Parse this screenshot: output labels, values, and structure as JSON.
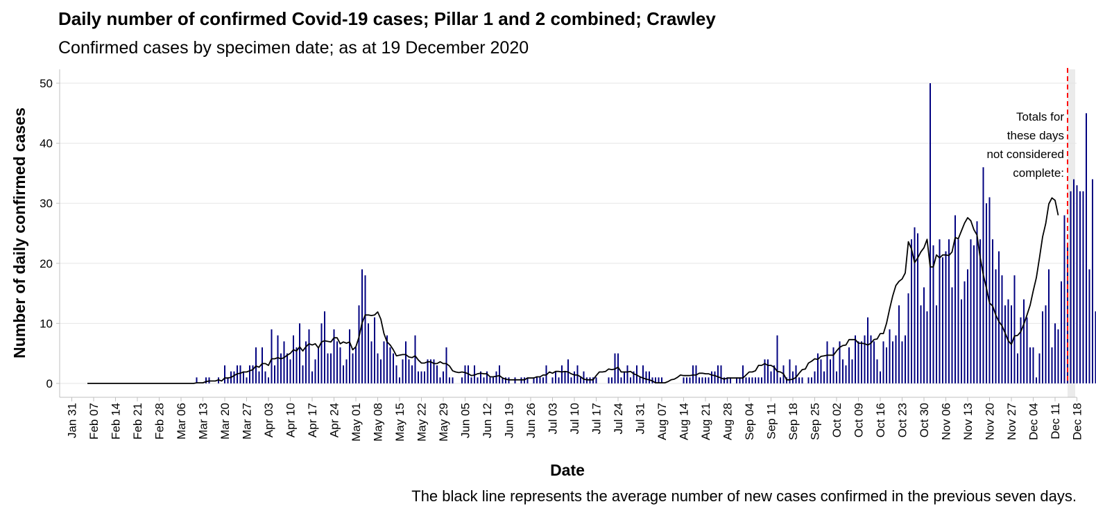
{
  "chart_data": {
    "type": "bar",
    "title": "Daily number of confirmed Covid-19 cases; Pillar 1 and 2 combined; Crawley",
    "subtitle": "Confirmed cases by specimen date; as at 19 December 2020",
    "xlabel": "Date",
    "ylabel": "Number of daily confirmed cases",
    "caption": "The black line represents the average number of new cases confirmed in the previous seven days.",
    "annotation": [
      "Totals for",
      "these days",
      "not considered",
      "complete:"
    ],
    "ylim": [
      0,
      52
    ],
    "yticks": [
      0,
      10,
      20,
      30,
      40,
      50
    ],
    "grid": true,
    "x_start_date": "2020-01-31",
    "incomplete_from_date": "2020-12-15",
    "xtick_labels": [
      "Jan 31",
      "Feb 07",
      "Feb 14",
      "Feb 21",
      "Feb 28",
      "Mar 06",
      "Mar 13",
      "Mar 20",
      "Mar 27",
      "Apr 03",
      "Apr 10",
      "Apr 17",
      "Apr 24",
      "May 01",
      "May 08",
      "May 15",
      "May 22",
      "May 29",
      "Jun 05",
      "Jun 12",
      "Jun 19",
      "Jun 26",
      "Jul 03",
      "Jul 10",
      "Jul 17",
      "Jul 24",
      "Jul 31",
      "Aug 07",
      "Aug 14",
      "Aug 21",
      "Aug 28",
      "Sep 04",
      "Sep 11",
      "Sep 18",
      "Sep 25",
      "Oct 02",
      "Oct 09",
      "Oct 16",
      "Oct 23",
      "Oct 30",
      "Nov 06",
      "Nov 13",
      "Nov 20",
      "Nov 27",
      "Dec 04",
      "Dec 11",
      "Dec 18"
    ],
    "colors": {
      "bars": "#000080",
      "average_line": "#000000",
      "cutoff_line": "#ff0000",
      "incomplete_region": "#ebebeb"
    },
    "series": [
      {
        "name": "Daily confirmed cases",
        "start_date": "2020-02-05",
        "values": [
          0,
          0,
          0,
          0,
          0,
          0,
          0,
          0,
          0,
          0,
          0,
          0,
          0,
          0,
          0,
          0,
          0,
          0,
          0,
          0,
          0,
          0,
          0,
          0,
          0,
          0,
          0,
          0,
          0,
          0,
          0,
          0,
          0,
          0,
          0,
          1,
          0,
          0,
          1,
          1,
          0,
          0,
          1,
          0,
          3,
          1,
          2,
          2,
          3,
          3,
          2,
          1,
          3,
          3,
          6,
          2,
          6,
          2,
          1,
          9,
          3,
          8,
          5,
          7,
          5,
          4,
          8,
          6,
          10,
          3,
          7,
          9,
          2,
          4,
          6,
          10,
          12,
          5,
          5,
          9,
          7,
          6,
          3,
          4,
          9,
          5,
          6,
          13,
          19,
          18,
          10,
          7,
          11,
          5,
          4,
          7,
          8,
          6,
          5,
          3,
          1,
          4,
          7,
          4,
          3,
          8,
          2,
          2,
          2,
          4,
          4,
          4,
          3,
          1,
          2,
          6,
          1,
          1,
          0,
          0,
          1,
          3,
          3,
          1,
          3,
          1,
          2,
          1,
          2,
          1,
          1,
          2,
          3,
          1,
          1,
          1,
          0,
          1,
          0,
          1,
          1,
          1,
          0,
          1,
          1,
          1,
          1,
          3,
          0,
          1,
          2,
          1,
          3,
          2,
          4,
          1,
          2,
          3,
          1,
          2,
          1,
          1,
          1,
          1,
          0,
          0,
          0,
          1,
          1,
          5,
          5,
          1,
          2,
          3,
          1,
          2,
          3,
          1,
          3,
          2,
          2,
          1,
          1,
          1,
          1,
          0,
          0,
          0,
          0,
          0,
          0,
          1,
          1,
          1,
          3,
          3,
          1,
          1,
          1,
          1,
          2,
          2,
          3,
          3,
          1,
          1,
          1,
          0,
          1,
          1,
          3,
          1,
          1,
          1,
          1,
          1,
          1,
          4,
          4,
          2,
          3,
          8,
          1,
          3,
          1,
          4,
          2,
          3,
          1,
          1,
          0,
          1,
          1,
          2,
          5,
          4,
          2,
          7,
          4,
          6,
          2,
          7,
          4,
          3,
          6,
          4,
          8,
          7,
          7,
          8,
          11,
          8,
          7,
          4,
          2,
          7,
          6,
          9,
          7,
          8,
          13,
          7,
          8,
          15,
          24,
          26,
          25,
          13,
          16,
          12,
          50,
          23,
          13,
          24,
          21,
          22,
          24,
          16,
          28,
          24,
          14,
          17,
          19,
          24,
          23,
          27,
          24,
          36,
          30,
          31,
          24,
          19,
          22,
          18,
          13,
          14,
          13,
          18,
          5,
          11,
          14,
          11,
          6,
          6,
          1,
          5,
          12,
          13,
          19,
          6,
          10,
          9,
          17,
          28,
          23,
          32,
          34,
          33,
          32,
          32,
          45,
          19,
          34,
          12
        ]
      },
      {
        "name": "7-day average",
        "start_date": "2020-02-05",
        "values": [
          0,
          0,
          0,
          0,
          0,
          0,
          0,
          0,
          0,
          0,
          0,
          0,
          0,
          0,
          0,
          0,
          0,
          0,
          0,
          0,
          0,
          0,
          0,
          0,
          0,
          0,
          0,
          0,
          0,
          0,
          0,
          0,
          0,
          0,
          0,
          0.1,
          0.1,
          0.1,
          0.3,
          0.4,
          0.4,
          0.4,
          0.6,
          0.4,
          0.9,
          0.9,
          1.0,
          1.3,
          1.6,
          1.7,
          1.9,
          1.9,
          2.1,
          2.3,
          2.9,
          2.7,
          3.3,
          3.3,
          3.0,
          4.1,
          4.1,
          4.3,
          4.1,
          4.3,
          4.7,
          5.0,
          5.6,
          5.4,
          6.1,
          5.4,
          6.1,
          6.6,
          6.4,
          6.6,
          5.9,
          6.9,
          7.1,
          7.0,
          6.9,
          7.6,
          7.6,
          6.6,
          6.9,
          6.7,
          6.9,
          5.6,
          6.1,
          7.7,
          10.1,
          11.4,
          11.4,
          11.3,
          11.4,
          11.9,
          10.7,
          8.3,
          6.9,
          6.4,
          5.6,
          4.6,
          4.7,
          4.8,
          4.8,
          4.4,
          4.3,
          4.6,
          3.9,
          3.4,
          3.4,
          3.6,
          3.6,
          3.3,
          3.3,
          3.6,
          3.3,
          3.3,
          2.9,
          2.1,
          1.9,
          1.8,
          1.9,
          1.8,
          1.6,
          1.3,
          1.4,
          1.6,
          1.7,
          1.6,
          1.6,
          1.1,
          1.1,
          1.2,
          1.3,
          0.9,
          0.7,
          0.6,
          0.6,
          0.6,
          0.6,
          0.6,
          0.6,
          0.9,
          0.9,
          0.9,
          1.1,
          1.1,
          1.4,
          1.4,
          1.9,
          1.7,
          2.0,
          2.0,
          1.9,
          2.0,
          1.9,
          1.6,
          1.4,
          1.4,
          1.1,
          0.7,
          0.6,
          0.6,
          0.6,
          1.3,
          1.9,
          1.9,
          2.0,
          2.4,
          2.3,
          2.4,
          2.7,
          1.9,
          1.9,
          1.9,
          2.0,
          1.6,
          1.4,
          1.1,
          0.9,
          0.7,
          0.6,
          0.4,
          0.1,
          0.1,
          0.1,
          0.1,
          0.3,
          0.6,
          0.7,
          1.0,
          1.4,
          1.3,
          1.3,
          1.3,
          1.4,
          1.4,
          1.7,
          1.7,
          1.6,
          1.6,
          1.4,
          1.3,
          1.1,
          0.9,
          0.7,
          0.9,
          0.9,
          0.9,
          0.9,
          0.9,
          0.9,
          1.4,
          1.9,
          1.9,
          2.1,
          3.0,
          3.0,
          3.3,
          3.0,
          3.0,
          2.7,
          2.0,
          1.9,
          1.6,
          0.6,
          0.6,
          0.7,
          1.0,
          1.7,
          2.3,
          2.4,
          3.4,
          3.7,
          4.1,
          4.0,
          4.5,
          4.6,
          4.7,
          4.7,
          4.7,
          5.4,
          6.0,
          6.3,
          6.4,
          7.3,
          7.3,
          7.3,
          6.7,
          6.7,
          6.6,
          6.4,
          6.7,
          7.3,
          7.4,
          8.3,
          8.3,
          10.0,
          12.4,
          14.6,
          16.3,
          17.0,
          17.4,
          18.4,
          23.6,
          22.4,
          20.1,
          20.9,
          21.9,
          22.6,
          24.0,
          19.4,
          19.4,
          21.4,
          20.9,
          21.4,
          21.4,
          21.3,
          21.9,
          24.3,
          24.1,
          25.4,
          26.7,
          27.6,
          27.1,
          25.6,
          24.7,
          21.0,
          18.1,
          15.9,
          13.4,
          12.9,
          11.4,
          10.3,
          9.6,
          8.4,
          7.1,
          6.5,
          7.9,
          8.0,
          8.6,
          9.9,
          11.4,
          13.0,
          15.4,
          17.6,
          20.9,
          24.4,
          26.6,
          29.9,
          30.9,
          30.5,
          28.0
        ]
      }
    ]
  }
}
